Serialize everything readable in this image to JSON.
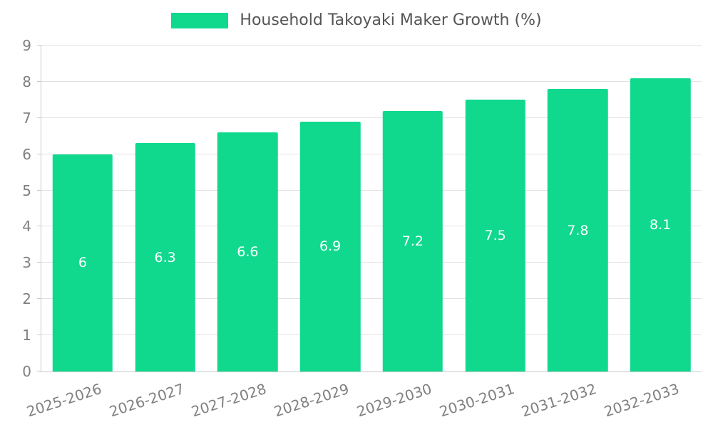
{
  "chart_data": {
    "type": "bar",
    "title": "Household Takoyaki Maker Growth (%)",
    "categories": [
      "2025-2026",
      "2026-2027",
      "2027-2028",
      "2028-2029",
      "2029-2030",
      "2030-2031",
      "2031-2032",
      "2032-2033"
    ],
    "values": [
      6,
      6.3,
      6.6,
      6.9,
      7.2,
      7.5,
      7.8,
      8.1
    ],
    "bar_labels": [
      "6",
      "6.3",
      "6.6",
      "6.9",
      "7.2",
      "7.5",
      "7.8",
      "8.1"
    ],
    "xlabel": "",
    "ylabel": "",
    "ylim": [
      0,
      9
    ],
    "y_ticks": [
      0,
      1,
      2,
      3,
      4,
      5,
      6,
      7,
      8,
      9
    ],
    "grid": true,
    "legend_position": "top-center",
    "colors": {
      "bar": "#10d98e",
      "bar_label": "#ffffff",
      "axis_text": "#808080",
      "grid_line": "#e3e3e3",
      "axis_line": "#c9c9c9",
      "title_text": "#555555",
      "background": "#ffffff"
    }
  }
}
